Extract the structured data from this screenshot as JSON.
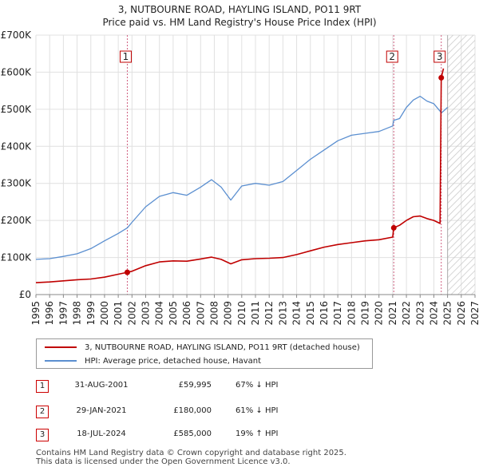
{
  "title_line1": "3, NUTBOURNE ROAD, HAYLING ISLAND, PO11 9RT",
  "title_line2": "Price paid vs. HM Land Registry's House Price Index (HPI)",
  "colors": {
    "property": "#c00000",
    "hpi": "#5b8fd0",
    "marker_line": "#d06080",
    "grid": "#e0e0e0"
  },
  "chart_data": {
    "type": "line",
    "title": "3, NUTBOURNE ROAD, HAYLING ISLAND, PO11 9RT — Price paid vs. HM Land Registry's House Price Index (HPI)",
    "xlabel": "",
    "ylabel": "",
    "xlim": [
      1995,
      2027
    ],
    "ylim": [
      0,
      700000
    ],
    "y_ticks": [
      0,
      100000,
      200000,
      300000,
      400000,
      500000,
      600000,
      700000
    ],
    "y_tick_labels": [
      "£0",
      "£100K",
      "£200K",
      "£300K",
      "£400K",
      "£500K",
      "£600K",
      "£700K"
    ],
    "x_ticks": [
      1995,
      1996,
      1997,
      1998,
      1999,
      2000,
      2001,
      2002,
      2003,
      2004,
      2005,
      2006,
      2007,
      2008,
      2009,
      2010,
      2011,
      2012,
      2013,
      2014,
      2015,
      2016,
      2017,
      2018,
      2019,
      2020,
      2021,
      2022,
      2023,
      2024,
      2025,
      2026,
      2027
    ],
    "forecast_from": 2025.0,
    "series": [
      {
        "name": "3, NUTBOURNE ROAD, HAYLING ISLAND, PO11 9RT (detached house)",
        "x": [
          1995.0,
          1996.0,
          1997.0,
          1998.0,
          1999.0,
          2000.0,
          2001.0,
          2001.66,
          2002.0,
          2003.0,
          2004.0,
          2005.0,
          2006.0,
          2007.0,
          2007.8,
          2008.5,
          2009.2,
          2010.0,
          2011.0,
          2012.0,
          2013.0,
          2014.0,
          2015.0,
          2016.0,
          2017.0,
          2018.0,
          2019.0,
          2020.0,
          2021.0,
          2021.08,
          2021.5,
          2022.0,
          2022.5,
          2023.0,
          2023.5,
          2024.0,
          2024.45,
          2024.54,
          2024.7
        ],
        "values": [
          32000,
          34000,
          37000,
          40000,
          42000,
          47000,
          55000,
          59995,
          63000,
          78000,
          88000,
          91000,
          90000,
          96000,
          101000,
          95000,
          83000,
          94000,
          97000,
          98000,
          100000,
          108000,
          118000,
          128000,
          135000,
          140000,
          145000,
          148000,
          155000,
          180000,
          187000,
          200000,
          210000,
          212000,
          205000,
          200000,
          192000,
          585000,
          610000
        ]
      },
      {
        "name": "HPI: Average price, detached house, Havant",
        "x": [
          1995.0,
          1996.0,
          1997.0,
          1998.0,
          1999.0,
          2000.0,
          2001.0,
          2001.66,
          2002.0,
          2003.0,
          2004.0,
          2005.0,
          2006.0,
          2007.0,
          2007.8,
          2008.5,
          2009.2,
          2010.0,
          2011.0,
          2012.0,
          2013.0,
          2014.0,
          2015.0,
          2016.0,
          2017.0,
          2018.0,
          2019.0,
          2020.0,
          2021.0,
          2021.08,
          2021.5,
          2022.0,
          2022.5,
          2023.0,
          2023.5,
          2024.0,
          2024.45,
          2024.54,
          2024.7,
          2025.0
        ],
        "values": [
          95000,
          97000,
          103000,
          110000,
          124000,
          145000,
          165000,
          180000,
          195000,
          237000,
          265000,
          275000,
          268000,
          290000,
          310000,
          290000,
          255000,
          293000,
          300000,
          295000,
          305000,
          335000,
          365000,
          390000,
          415000,
          430000,
          435000,
          440000,
          455000,
          470000,
          475000,
          505000,
          525000,
          535000,
          522000,
          515000,
          495000,
          490000,
          495000,
          505000
        ]
      }
    ],
    "sales": [
      {
        "label": "1",
        "x": 2001.66,
        "value": 59995
      },
      {
        "label": "2",
        "x": 2021.08,
        "value": 180000
      },
      {
        "label": "3",
        "x": 2024.54,
        "value": 585000
      }
    ]
  },
  "legend": {
    "property_label": "3, NUTBOURNE ROAD, HAYLING ISLAND, PO11 9RT (detached house)",
    "hpi_label": "HPI: Average price, detached house, Havant"
  },
  "transactions": [
    {
      "num": "1",
      "date": "31-AUG-2001",
      "price": "£59,995",
      "hpi": "67% ↓ HPI"
    },
    {
      "num": "2",
      "date": "29-JAN-2021",
      "price": "£180,000",
      "hpi": "61% ↓ HPI"
    },
    {
      "num": "3",
      "date": "18-JUL-2024",
      "price": "£585,000",
      "hpi": "19% ↑ HPI"
    }
  ],
  "footer_line1": "Contains HM Land Registry data © Crown copyright and database right 2025.",
  "footer_line2": "This data is licensed under the Open Government Licence v3.0."
}
